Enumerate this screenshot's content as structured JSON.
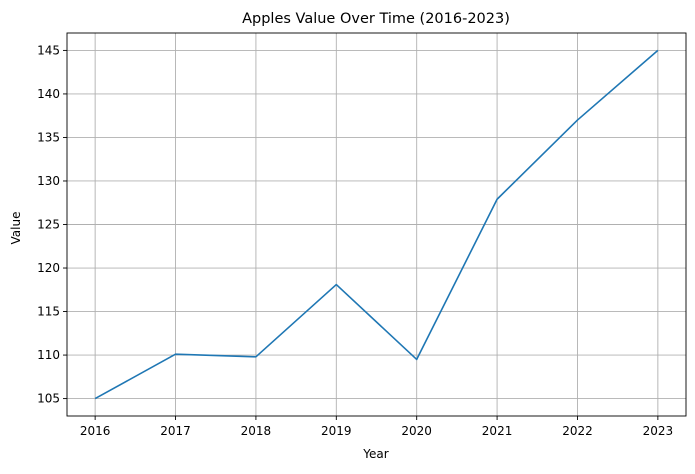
{
  "chart_data": {
    "type": "line",
    "title": "Apples Value Over Time (2016-2023)",
    "xlabel": "Year",
    "ylabel": "Value",
    "x": [
      2016,
      2017,
      2018,
      2019,
      2020,
      2021,
      2022,
      2023
    ],
    "series": [
      {
        "values": [
          105.0,
          110.1,
          109.8,
          118.1,
          109.5,
          127.9,
          137.0,
          145.0
        ],
        "color": "#1f77b4"
      }
    ],
    "xlim": [
      2015.65,
      2023.35
    ],
    "ylim": [
      103.0,
      147.0
    ],
    "xticks": [
      "2016",
      "2017",
      "2018",
      "2019",
      "2020",
      "2021",
      "2022",
      "2023"
    ],
    "yticks": [
      "105",
      "110",
      "115",
      "120",
      "125",
      "130",
      "135",
      "140",
      "145"
    ],
    "grid": true,
    "legend": "none"
  }
}
